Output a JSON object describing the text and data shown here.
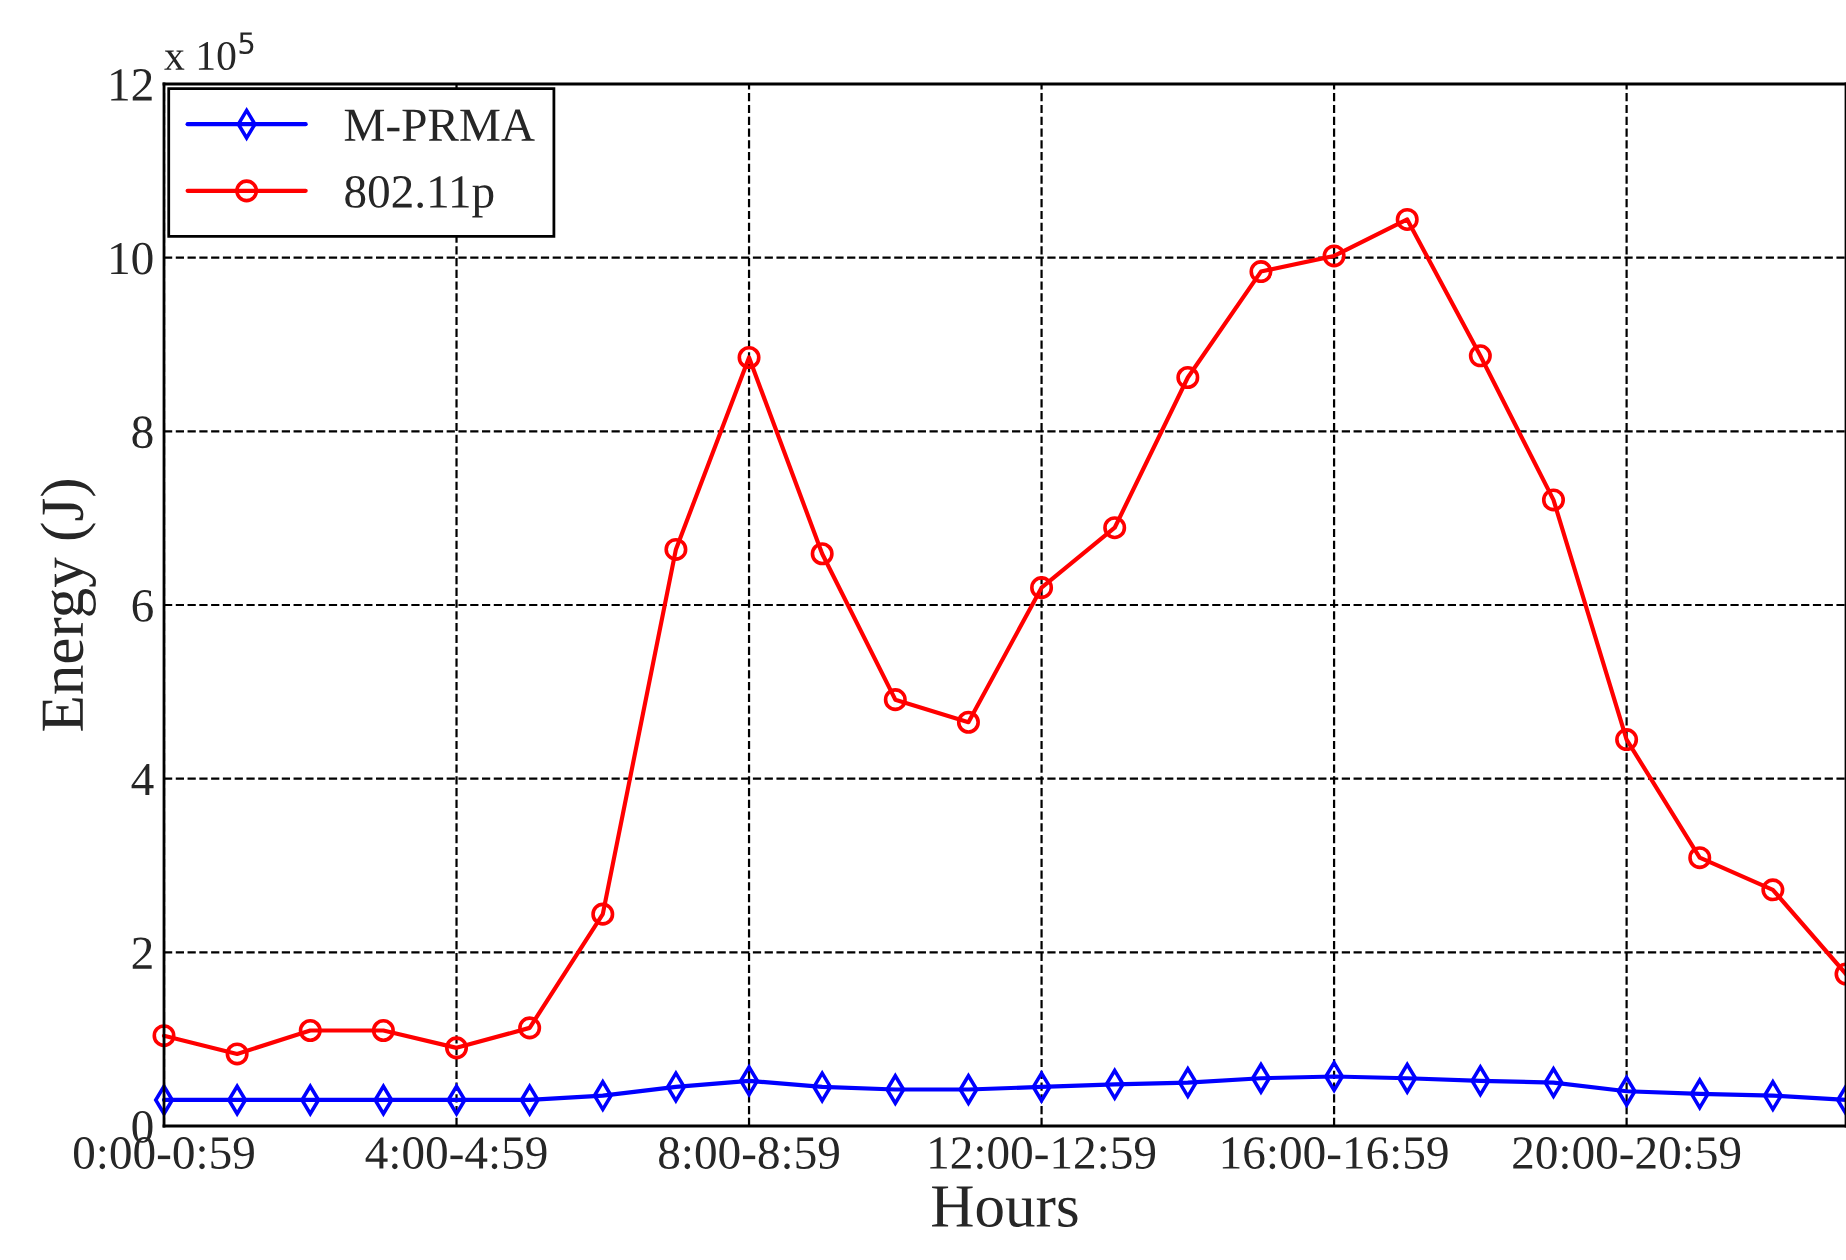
{
  "chart_data": {
    "type": "line",
    "xlabel": "Hours",
    "ylabel": "Energy (J)",
    "annotations": [
      "x 10$^{5}$"
    ],
    "categories": [
      "0:00-0:59",
      null,
      null,
      null,
      "4:00-4:59",
      null,
      null,
      null,
      "8:00-8:59",
      null,
      null,
      null,
      "12:00-12:59",
      null,
      null,
      null,
      "16:00-16:59",
      null,
      null,
      null,
      "20:00-20:59",
      null,
      null,
      null
    ],
    "ylim": [
      0,
      12
    ],
    "yticks": [
      0,
      2,
      4,
      6,
      8,
      10,
      12
    ],
    "grid": true,
    "legend": "top left",
    "line_style": "solid",
    "series": [
      {
        "name": "M-PRMA",
        "color": "#0000ff",
        "marker": "diamond",
        "values": [
          0.3,
          0.3,
          0.3,
          0.3,
          0.3,
          0.3,
          0.35,
          0.45,
          0.52,
          0.45,
          0.42,
          0.42,
          0.45,
          0.48,
          0.5,
          0.55,
          0.57,
          0.55,
          0.52,
          0.5,
          0.4,
          0.37,
          0.35,
          0.3
        ]
      },
      {
        "name": "802.11p",
        "color": "#ff0000",
        "marker": "circle",
        "values": [
          1.04,
          0.83,
          1.1,
          1.1,
          0.9,
          1.13,
          2.44,
          6.64,
          8.85,
          6.59,
          4.91,
          4.65,
          6.2,
          6.89,
          8.62,
          9.84,
          10.02,
          10.44,
          8.87,
          7.21,
          4.45,
          3.09,
          2.72,
          1.75
        ]
      }
    ]
  }
}
